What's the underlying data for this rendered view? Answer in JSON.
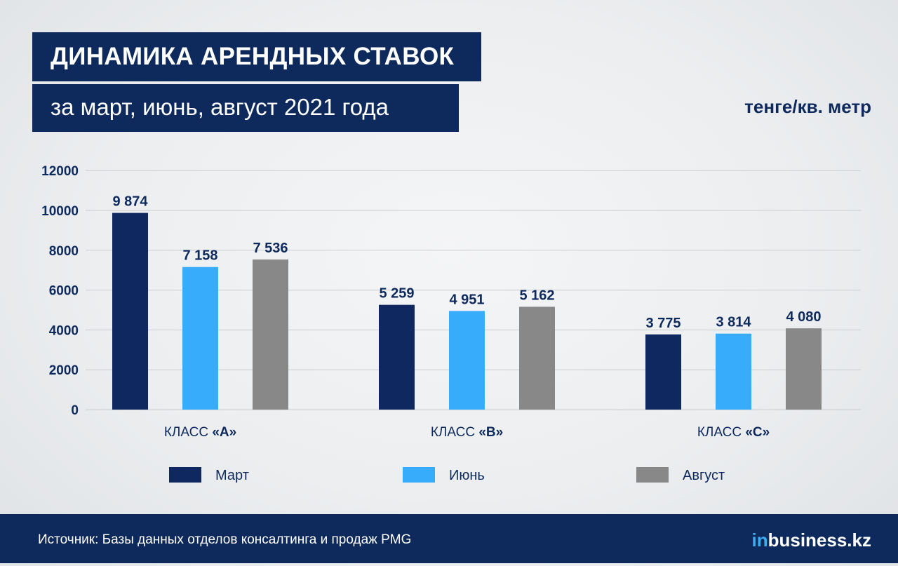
{
  "header": {
    "title": "ДИНАМИКА АРЕНДНЫХ СТАВОК",
    "subtitle": "за март, июнь, август 2021 года",
    "unit": "тенге/кв. метр"
  },
  "footer": {
    "source": "Источник: Базы данных отделов консалтинга и продаж PMG",
    "logo_prefix": "in",
    "logo_rest": "business.kz"
  },
  "chart_data": {
    "type": "bar",
    "title": "ДИНАМИКА АРЕНДНЫХ СТАВОК",
    "subtitle": "за март, июнь, август 2021 года",
    "ylabel": "тенге/кв. метр",
    "ylim": [
      0,
      12000
    ],
    "yticks": [
      0,
      2000,
      4000,
      6000,
      8000,
      10000,
      12000
    ],
    "grid": true,
    "legend": "bottom",
    "category_prefix": "КЛАСС ",
    "categories": [
      "«A»",
      "«B»",
      "«C»"
    ],
    "series": [
      {
        "name": "Март",
        "color": "#0f2860",
        "values": [
          9874,
          5259,
          3775
        ],
        "labels": [
          "9 874",
          "5 259",
          "3 775"
        ]
      },
      {
        "name": "Июнь",
        "color": "#36acfa",
        "values": [
          7158,
          4951,
          3814
        ],
        "labels": [
          "7 158",
          "4 951",
          "3 814"
        ]
      },
      {
        "name": "Август",
        "color": "#888888",
        "values": [
          7536,
          5162,
          4080
        ],
        "labels": [
          "7 536",
          "5 162",
          "4 080"
        ]
      }
    ]
  }
}
